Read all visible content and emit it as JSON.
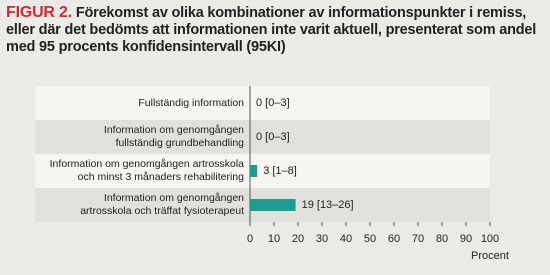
{
  "chart_data": {
    "type": "barh",
    "figure_label": "FIGUR 2.",
    "title": "Förekomst av olika kombinationer av informationspunkter i remiss, eller där det bedömts att informationen inte varit aktuell, presenterat som andel med 95 procents konfidensintervall (95KI)",
    "categories": [
      "Fullständig information",
      "Information om genomgången\nfullständig grundbehandling",
      "Information om genomgången artrosskola\noch minst 3 månaders rehabilitering",
      "Information om genomgången\nartrosskola och träffat fysioterapeut"
    ],
    "values": [
      0,
      0,
      3,
      19
    ],
    "value_labels": [
      "0 [0–3]",
      "0 [0–3]",
      "3 [1–8]",
      "19 [13–26]"
    ],
    "color": "#1a9e8f",
    "xlim": [
      0,
      100
    ],
    "xticks": [
      0,
      10,
      20,
      30,
      40,
      50,
      60,
      70,
      80,
      90,
      100
    ],
    "xlabel": "Procent"
  }
}
